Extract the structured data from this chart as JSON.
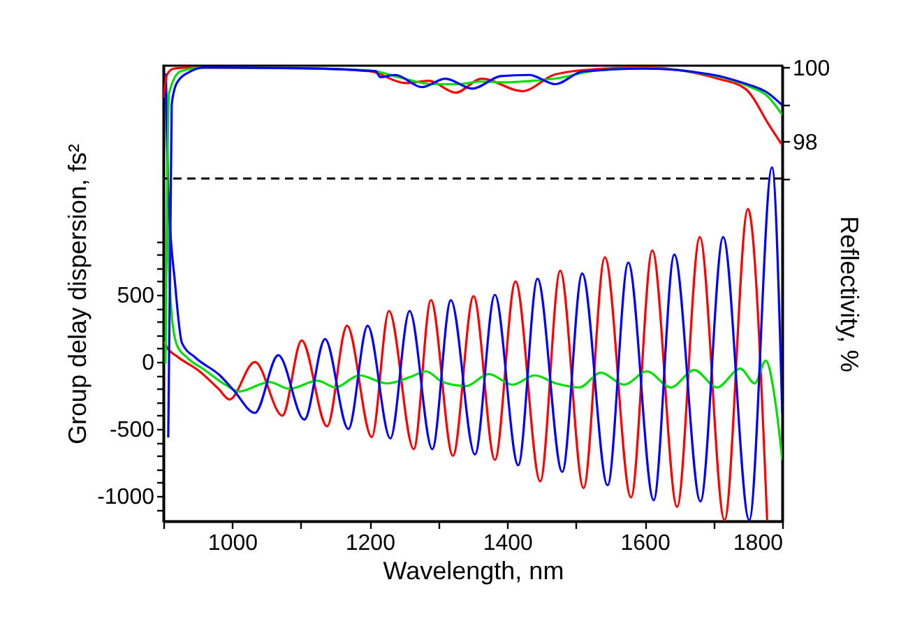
{
  "chart_data": {
    "type": "line",
    "xlabel": "Wavelength, nm",
    "ylabel": "Group delay dispersion, fs²",
    "y2label": "Reflectivity, %",
    "xlim": [
      900,
      1800
    ],
    "xticks": [
      {
        "value": 900,
        "label": null
      },
      1000,
      {
        "value": 1100,
        "label": null
      },
      1200,
      {
        "value": 1300,
        "label": null
      },
      1400,
      {
        "value": 1500,
        "label": null
      },
      1600,
      {
        "value": 1700,
        "label": null
      },
      1800
    ],
    "ylim": [
      -1187,
      2208
    ],
    "yticks": [
      {
        "value": -1100,
        "label": null
      },
      -1000,
      {
        "value": -900,
        "label": null
      },
      {
        "value": -800,
        "label": null
      },
      {
        "value": -700,
        "label": null
      },
      {
        "value": -600,
        "label": null
      },
      -500,
      {
        "value": -400,
        "label": null
      },
      {
        "value": -300,
        "label": null
      },
      {
        "value": -200,
        "label": null
      },
      {
        "value": -100,
        "label": null
      },
      0,
      {
        "value": 100,
        "label": null
      },
      {
        "value": 200,
        "label": null
      },
      {
        "value": 300,
        "label": null
      },
      {
        "value": 400,
        "label": null
      },
      500,
      {
        "value": 600,
        "label": null
      },
      {
        "value": 700,
        "label": null
      },
      {
        "value": 800,
        "label": null
      },
      {
        "value": 900,
        "label": null
      }
    ],
    "y2lim": [
      87.74,
      100.05
    ],
    "y2ticks": [
      {
        "value": 97,
        "label": null
      },
      98,
      {
        "value": 99,
        "label": null
      },
      100
    ],
    "grid": false,
    "legend": false,
    "line_style": "solid",
    "marker": "none",
    "ref_lines": [
      {
        "axis": "y2",
        "value": 97,
        "color": "#000000",
        "line_style": "dashed"
      }
    ],
    "series": [
      {
        "color": "#ff0000",
        "x": [
          901,
          905,
          920,
          950,
          980,
          996,
          1033,
          1073,
          1101,
          1138,
          1167,
          1203,
          1228,
          1264,
          1289,
          1321,
          1351,
          1382,
          1412,
          1448,
          1477,
          1511,
          1542,
          1580,
          1611,
          1647,
          1680,
          1716,
          1750,
          1778
        ],
        "values": [
          150,
          110,
          40,
          -60,
          -200,
          -280,
          0,
          -400,
          160,
          -480,
          270,
          -560,
          380,
          -650,
          460,
          -700,
          490,
          -730,
          600,
          -890,
          680,
          -940,
          780,
          -1010,
          830,
          -1080,
          930,
          -1180,
          1140,
          -1180
        ]
      },
      {
        "color": "#00e000",
        "x": [
          904,
          907,
          912,
          920,
          935,
          960,
          990,
          1010,
          1054,
          1083,
          1124,
          1150,
          1185,
          1225,
          1260,
          1282,
          1306,
          1340,
          1373,
          1408,
          1440,
          1471,
          1505,
          1536,
          1570,
          1603,
          1638,
          1672,
          1705,
          1739,
          1760,
          1776,
          1790,
          1800
        ],
        "values": [
          2150,
          900,
          350,
          120,
          30,
          -60,
          -170,
          -220,
          -150,
          -200,
          -140,
          -190,
          -100,
          -160,
          -110,
          -70,
          -150,
          -180,
          -90,
          -170,
          -100,
          -160,
          -190,
          -80,
          -170,
          -70,
          -190,
          -60,
          -190,
          -50,
          -160,
          10,
          -300,
          -730
        ]
      },
      {
        "color": "#0000ff",
        "x": [
          903,
          907,
          917,
          927,
          947,
          982,
          1002,
          1033,
          1067,
          1105,
          1135,
          1169,
          1197,
          1230,
          1258,
          1291,
          1318,
          1353,
          1382,
          1416,
          1444,
          1480,
          1509,
          1546,
          1576,
          1613,
          1643,
          1681,
          1714,
          1752,
          1785,
          1800
        ],
        "values": [
          2150,
          1280,
          580,
          140,
          30,
          -100,
          -210,
          -380,
          50,
          -430,
          170,
          -500,
          270,
          -570,
          380,
          -650,
          460,
          -690,
          500,
          -770,
          620,
          -820,
          660,
          -920,
          740,
          -1030,
          800,
          -1040,
          930,
          -1180,
          1450,
          -390
        ]
      },
      {
        "axis": "y2",
        "color": "#ff0000",
        "x": [
          900,
          905,
          915,
          940,
          1100,
          1200,
          1252,
          1286,
          1325,
          1363,
          1422,
          1469,
          1531,
          1600,
          1660,
          1706,
          1746,
          1782,
          1800
        ],
        "values": [
          99.17,
          99.8,
          99.97,
          100,
          99.98,
          99.9,
          99.58,
          99.64,
          99.32,
          99.7,
          99.36,
          99.81,
          99.96,
          100,
          99.9,
          99.7,
          99.43,
          98.41,
          97.9
        ]
      },
      {
        "axis": "y2",
        "color": "#00e000",
        "x": [
          903,
          908,
          925,
          960,
          1100,
          1200,
          1250,
          1290,
          1330,
          1360,
          1400,
          1420,
          1470,
          1530,
          1600,
          1680,
          1750,
          1780,
          1800
        ],
        "values": [
          92,
          99.3,
          99.9,
          100,
          99.98,
          99.92,
          99.7,
          99.55,
          99.55,
          99.62,
          99.6,
          99.62,
          99.7,
          99.92,
          99.98,
          99.85,
          99.5,
          99.2,
          98.72
        ]
      },
      {
        "axis": "y2",
        "color": "#0000ff",
        "x": [
          907,
          912,
          920,
          940,
          960,
          1100,
          1209,
          1215,
          1237,
          1276,
          1310,
          1349,
          1391,
          1432,
          1470,
          1509,
          1600,
          1700,
          1740,
          1780,
          1800
        ],
        "values": [
          90,
          99.0,
          99.6,
          99.9,
          100,
          99.98,
          99.9,
          99.74,
          99.8,
          99.47,
          99.7,
          99.43,
          99.77,
          99.8,
          99.55,
          99.89,
          99.97,
          99.8,
          99.6,
          99.3,
          98.98
        ]
      }
    ]
  }
}
